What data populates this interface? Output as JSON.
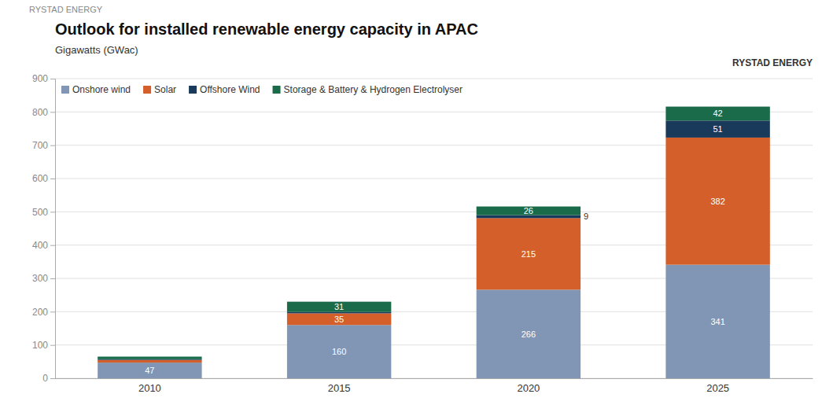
{
  "chart_data": {
    "type": "bar",
    "stacked": true,
    "title": "Outlook for installed renewable energy capacity in APAC",
    "subtitle": "Gigawatts (GWac)",
    "annotations": [
      "RYSTAD ENERGY",
      "RYSTAD ENERGY"
    ],
    "categories": [
      "2010",
      "2015",
      "2020",
      "2025"
    ],
    "series": [
      {
        "name": "Onshore wind",
        "color": "#8096b4",
        "values": [
          47,
          160,
          266,
          341
        ],
        "value_labels": [
          "47",
          "160",
          "266",
          "341"
        ]
      },
      {
        "name": "Solar",
        "color": "#d45f2a",
        "values": [
          8,
          35,
          215,
          382
        ],
        "value_labels": [
          null,
          "35",
          "215",
          "382"
        ]
      },
      {
        "name": "Offshore Wind",
        "color": "#1a3a5c",
        "values": [
          2,
          4,
          9,
          51
        ],
        "value_labels": [
          null,
          null,
          "9",
          "51"
        ]
      },
      {
        "name": "Storage & Battery & Hydrogen Electrolyser",
        "color": "#1a6b4a",
        "values": [
          8,
          31,
          26,
          42
        ],
        "value_labels": [
          null,
          "31",
          "26",
          "42"
        ]
      }
    ],
    "ylim": [
      0,
      900
    ],
    "yticks": [
      0,
      100,
      200,
      300,
      400,
      500,
      600,
      700,
      800,
      900
    ],
    "grid": true,
    "legend": "upper left",
    "data_labels": true
  }
}
